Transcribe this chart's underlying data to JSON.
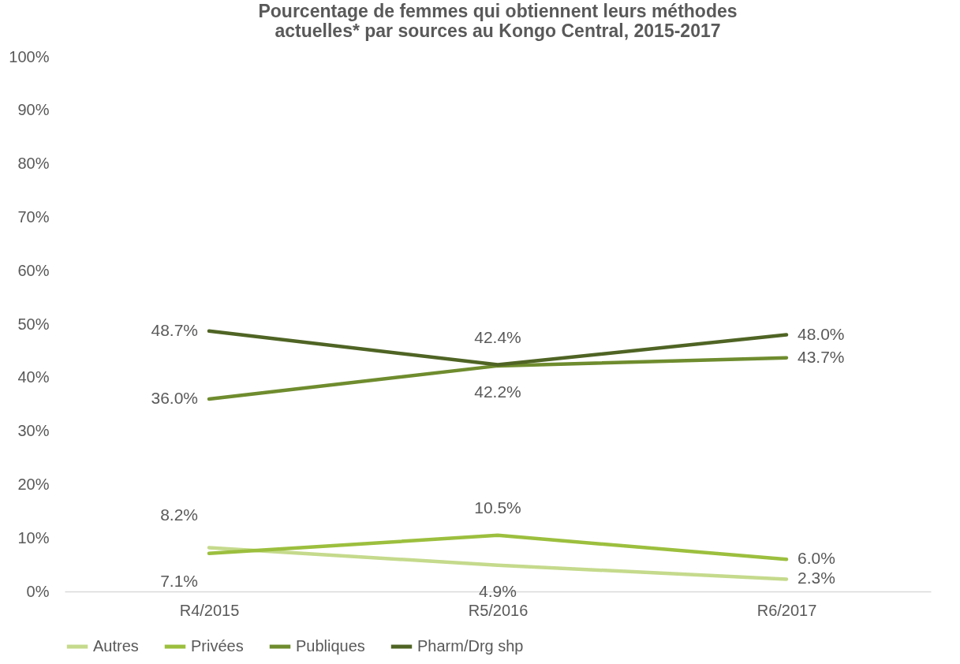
{
  "chart_data": {
    "type": "line",
    "title": "Pourcentage de femmes qui obtiennent leurs méthodes actuelles* par sources au Kongo Central, 2015-2017",
    "categories": [
      "R4/2015",
      "R5/2016",
      "R6/2017"
    ],
    "ylim": [
      0,
      100
    ],
    "yticks": [
      {
        "value": 0,
        "label": "0%"
      },
      {
        "value": 10,
        "label": "10%"
      },
      {
        "value": 20,
        "label": "20%"
      },
      {
        "value": 30,
        "label": "30%"
      },
      {
        "value": 40,
        "label": "40%"
      },
      {
        "value": 50,
        "label": "50%"
      },
      {
        "value": 60,
        "label": "60%"
      },
      {
        "value": 70,
        "label": "70%"
      },
      {
        "value": 80,
        "label": "80%"
      },
      {
        "value": 90,
        "label": "90%"
      },
      {
        "value": 100,
        "label": "100%"
      }
    ],
    "grid": false,
    "legend": "bottom",
    "marker": "none",
    "line_style": "solid",
    "series": [
      {
        "name": "Autres",
        "color": "#c5da8c",
        "values": [
          8.2,
          4.9,
          2.3
        ],
        "value_labels": [
          "8.2%",
          "4.9%",
          "2.3%"
        ]
      },
      {
        "name": "Privées",
        "color": "#9cbf3e",
        "values": [
          7.1,
          10.5,
          6.0
        ],
        "value_labels": [
          "7.1%",
          "10.5%",
          "6.0%"
        ]
      },
      {
        "name": "Publiques",
        "color": "#6f8c2e",
        "values": [
          36.0,
          42.2,
          43.7
        ],
        "value_labels": [
          "36.0%",
          "42.2%",
          "43.7%"
        ]
      },
      {
        "name": "Pharm/Drg shp",
        "color": "#4f6424",
        "values": [
          48.7,
          42.4,
          48.0
        ],
        "value_labels": [
          "48.7%",
          "42.4%",
          "48.0%"
        ]
      }
    ]
  }
}
